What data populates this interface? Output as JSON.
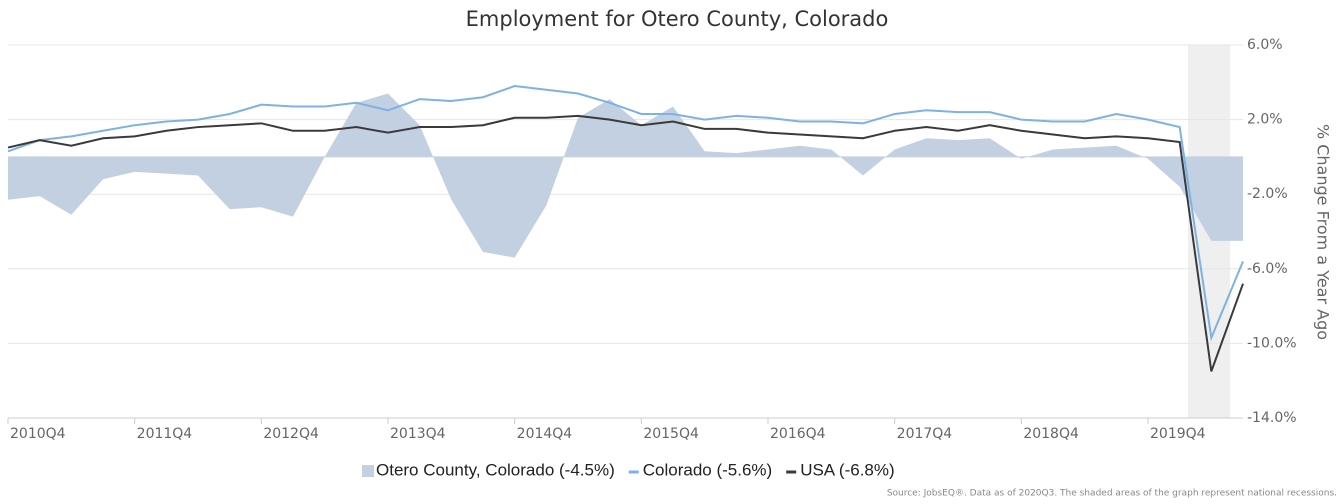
{
  "chart_data": {
    "type": "line",
    "title": "Employment for Otero County, Colorado",
    "y_axis_label": "% Change From a Year Ago",
    "source": "Source: JobsEQ®. Data as of 2020Q3. The shaded areas of the graph represent national recessions.",
    "categories": [
      "2010Q4",
      null,
      null,
      null,
      "2011Q4",
      null,
      null,
      null,
      "2012Q4",
      null,
      null,
      null,
      "2013Q4",
      null,
      null,
      null,
      "2014Q4",
      null,
      null,
      null,
      "2015Q4",
      null,
      null,
      null,
      "2016Q4",
      null,
      null,
      null,
      "2017Q4",
      null,
      null,
      null,
      "2018Q4",
      null,
      null,
      null,
      "2019Q4",
      null,
      null,
      null
    ],
    "ylim": [
      -14,
      6
    ],
    "yticks": [
      {
        "value": 6,
        "label": "6.0%"
      },
      {
        "value": 2,
        "label": "2.0%"
      },
      {
        "value": -2,
        "label": "-2.0%"
      },
      {
        "value": -6,
        "label": "-6.0%"
      },
      {
        "value": -10,
        "label": "-10.0%"
      },
      {
        "value": -14,
        "label": "-14.0%"
      }
    ],
    "grid": true,
    "legend": "bottom",
    "series": [
      {
        "name": "Otero County, Colorado (-4.5%)",
        "kind": "area",
        "color": "#c3d0e2",
        "values": [
          -2.3,
          -2.1,
          -3.1,
          -1.2,
          -0.8,
          -0.9,
          -1.0,
          -2.8,
          -2.7,
          -3.2,
          0.0,
          2.9,
          3.4,
          1.7,
          -2.3,
          -5.1,
          -5.4,
          -2.6,
          2.1,
          3.1,
          1.7,
          2.7,
          0.3,
          0.2,
          0.4,
          0.6,
          0.4,
          -1.0,
          0.4,
          1.0,
          0.9,
          1.0,
          -0.1,
          0.4,
          0.5,
          0.6,
          -0.1,
          -1.6,
          -4.5,
          -4.5
        ]
      },
      {
        "name": "Colorado (-5.6%)",
        "kind": "line",
        "color": "#7cb2e4",
        "values": [
          0.3,
          0.9,
          1.1,
          1.4,
          1.7,
          1.9,
          2.0,
          2.3,
          2.8,
          2.7,
          2.7,
          2.9,
          2.5,
          3.1,
          3.0,
          3.2,
          3.8,
          3.6,
          3.4,
          2.9,
          2.3,
          2.3,
          2.0,
          2.2,
          2.1,
          1.9,
          1.9,
          1.8,
          2.3,
          2.5,
          2.4,
          2.4,
          2.0,
          1.9,
          1.9,
          2.3,
          2.0,
          1.6,
          -9.7,
          -5.6
        ]
      },
      {
        "name": "USA (-6.8%)",
        "kind": "line",
        "color": "#3a3a3a",
        "values": [
          0.5,
          0.9,
          0.6,
          1.0,
          1.1,
          1.4,
          1.6,
          1.7,
          1.8,
          1.4,
          1.4,
          1.6,
          1.3,
          1.6,
          1.6,
          1.7,
          2.1,
          2.1,
          2.2,
          2.0,
          1.7,
          1.9,
          1.5,
          1.5,
          1.3,
          1.2,
          1.1,
          1.0,
          1.4,
          1.6,
          1.4,
          1.7,
          1.4,
          1.2,
          1.0,
          1.1,
          1.0,
          0.8,
          -11.5,
          -6.8
        ]
      }
    ]
  }
}
